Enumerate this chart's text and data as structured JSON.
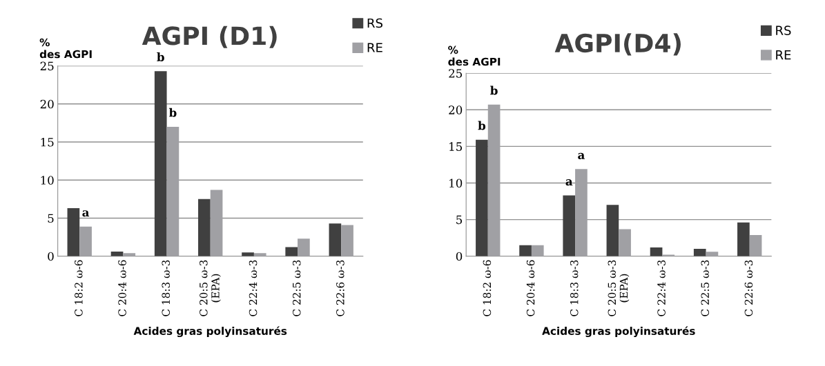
{
  "chart_data": [
    {
      "type": "bar",
      "title": "AGPI (D1)",
      "ylabel": "%\ndes AGPI",
      "xlabel": "Acides gras polyinsaturés",
      "categories": [
        "C 18:2 ω-6",
        "C 20:4 ω-6",
        "C 18:3 ω-3",
        "C 20:5 ω-3\n(EPA)",
        "C 22:4 ω-3",
        "C 22:5 ω-3",
        "C 22:6 ω-3"
      ],
      "series": [
        {
          "name": "RS",
          "color": "#404040",
          "values": [
            6.3,
            0.6,
            24.3,
            7.5,
            0.5,
            1.2,
            4.3
          ]
        },
        {
          "name": "RE",
          "color": "#a0a0a4",
          "values": [
            3.9,
            0.4,
            17.0,
            8.7,
            0.4,
            2.3,
            4.1
          ]
        }
      ],
      "annotations": [
        {
          "text": "a",
          "x": "C 18:2 ω-6",
          "y": 3.9
        },
        {
          "text": "b",
          "x": "C 18:3 ω-3",
          "y": 24.3
        },
        {
          "text": "b",
          "x": "C 18:3 ω-3",
          "y": 17.0
        }
      ],
      "ylim": [
        0,
        25
      ],
      "yticks": [
        0,
        5,
        10,
        15,
        20,
        25
      ],
      "grid": "y",
      "legend": "top right"
    },
    {
      "type": "bar",
      "title": "AGPI(D4)",
      "ylabel": "%\ndes AGPI",
      "xlabel": "Acides gras polyinsaturés",
      "categories": [
        "C 18:2 ω-6",
        "C 20:4 ω-6",
        "C 18:3 ω-3",
        "C 20:5 ω-3\n(EPA)",
        "C 22:4 ω-3",
        "C 22:5 ω-3",
        "C 22:6 ω-3"
      ],
      "series": [
        {
          "name": "RS",
          "color": "#404040",
          "values": [
            15.9,
            1.5,
            8.3,
            7.0,
            1.2,
            1.0,
            4.6
          ]
        },
        {
          "name": "RE",
          "color": "#a0a0a4",
          "values": [
            20.7,
            1.5,
            11.9,
            3.7,
            0.2,
            0.6,
            2.9
          ]
        }
      ],
      "annotations": [
        {
          "text": "b",
          "x": "C 18:2 ω-6",
          "y": 15.9
        },
        {
          "text": "b",
          "x": "C 18:2 ω-6",
          "y": 20.7
        },
        {
          "text": "a",
          "x": "C 18:3 ω-3",
          "y": 8.3
        },
        {
          "text": "a",
          "x": "C 18:3 ω-3",
          "y": 11.9
        }
      ],
      "ylim": [
        0,
        25
      ],
      "yticks": [
        0,
        5,
        10,
        15,
        20,
        25
      ],
      "grid": "y",
      "legend": "top right"
    }
  ]
}
